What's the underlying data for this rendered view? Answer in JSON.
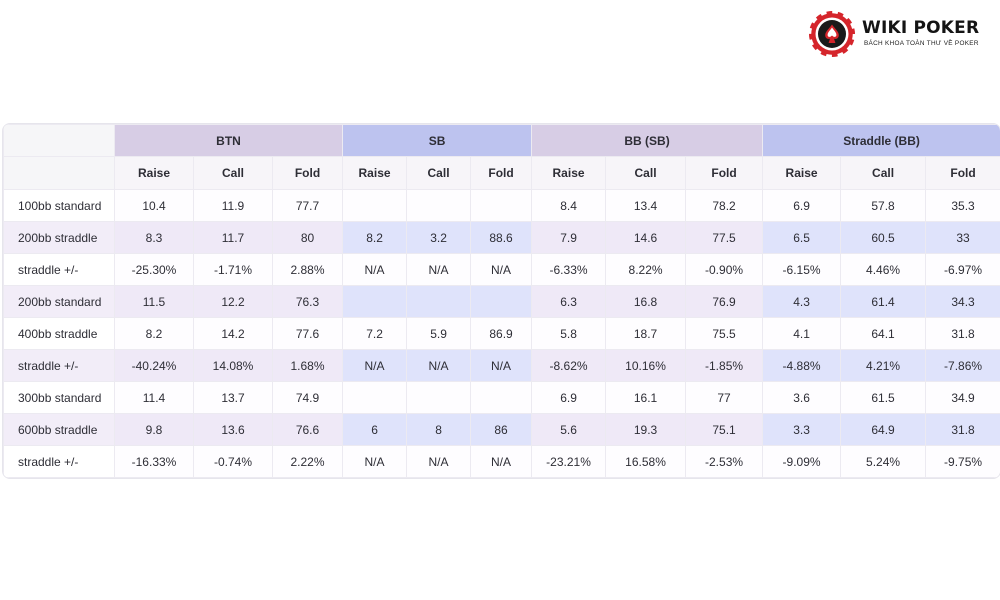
{
  "logo": {
    "brand": "WIKI POKER",
    "tagline": "BÁCH KHOA TOÀN THƯ VỀ POKER",
    "colors": {
      "ring": "#d5252b",
      "dark": "#1a1a1a"
    },
    "icon": "poker-chip-spade-icon"
  },
  "table": {
    "groups": [
      "BTN",
      "SB",
      "BB (SB)",
      "Straddle (BB)"
    ],
    "subheaders": [
      "Raise",
      "Call",
      "Fold"
    ],
    "rows": [
      {
        "label": "100bb standard",
        "cells": [
          "10.4",
          "11.9",
          "77.7",
          "",
          "",
          "",
          "8.4",
          "13.4",
          "78.2",
          "6.9",
          "57.8",
          "35.3"
        ]
      },
      {
        "label": "200bb straddle",
        "cells": [
          "8.3",
          "11.7",
          "80",
          "8.2",
          "3.2",
          "88.6",
          "7.9",
          "14.6",
          "77.5",
          "6.5",
          "60.5",
          "33"
        ]
      },
      {
        "label": "straddle +/-",
        "cells": [
          "-25.30%",
          "-1.71%",
          "2.88%",
          "N/A",
          "N/A",
          "N/A",
          "-6.33%",
          "8.22%",
          "-0.90%",
          "-6.15%",
          "4.46%",
          "-6.97%"
        ]
      },
      {
        "label": "200bb standard",
        "cells": [
          "11.5",
          "12.2",
          "76.3",
          "",
          "",
          "",
          "6.3",
          "16.8",
          "76.9",
          "4.3",
          "61.4",
          "34.3"
        ]
      },
      {
        "label": "400bb straddle",
        "cells": [
          "8.2",
          "14.2",
          "77.6",
          "7.2",
          "5.9",
          "86.9",
          "5.8",
          "18.7",
          "75.5",
          "4.1",
          "64.1",
          "31.8"
        ]
      },
      {
        "label": "straddle +/-",
        "cells": [
          "-40.24%",
          "14.08%",
          "1.68%",
          "N/A",
          "N/A",
          "N/A",
          "-8.62%",
          "10.16%",
          "-1.85%",
          "-4.88%",
          "4.21%",
          "-7.86%"
        ]
      },
      {
        "label": "300bb standard",
        "cells": [
          "11.4",
          "13.7",
          "74.9",
          "",
          "",
          "",
          "6.9",
          "16.1",
          "77",
          "3.6",
          "61.5",
          "34.9"
        ]
      },
      {
        "label": "600bb straddle",
        "cells": [
          "9.8",
          "13.6",
          "76.6",
          "6",
          "8",
          "86",
          "5.6",
          "19.3",
          "75.1",
          "3.3",
          "64.9",
          "31.8"
        ]
      },
      {
        "label": "straddle +/-",
        "cells": [
          "-16.33%",
          "-0.74%",
          "2.22%",
          "N/A",
          "N/A",
          "N/A",
          "-23.21%",
          "16.58%",
          "-2.53%",
          "-9.09%",
          "5.24%",
          "-9.75%"
        ]
      }
    ],
    "colors": {
      "header_purple": "#d7cde5",
      "header_blue": "#bdc3ef",
      "row_purple": "#efe9f7",
      "row_blue": "#dfe3fb"
    }
  }
}
